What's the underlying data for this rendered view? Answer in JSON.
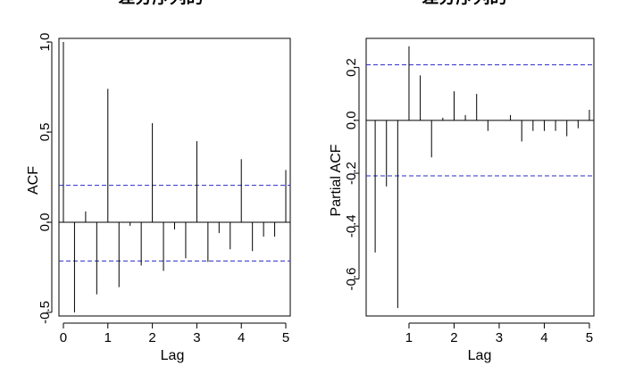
{
  "chart_data": [
    {
      "type": "bar",
      "title": "差分序列的",
      "xlabel": "Lag",
      "ylabel": "ACF",
      "xlim": [
        -0.1,
        5.1
      ],
      "ylim": [
        -0.52,
        1.02
      ],
      "xticks": [
        0,
        1,
        2,
        3,
        4,
        5
      ],
      "xtick_labels": [
        "0",
        "1",
        "2",
        "3",
        "4",
        "5"
      ],
      "yticks": [
        -0.5,
        0.0,
        0.5,
        1.0
      ],
      "ytick_labels": [
        "-0.5",
        "0.0",
        "0.5",
        "1.0"
      ],
      "confidence_band": [
        0.205,
        -0.215
      ],
      "confidence_color": "#2b2bc8",
      "x": [
        0,
        0.25,
        0.5,
        0.75,
        1.0,
        1.25,
        1.5,
        1.75,
        2.0,
        2.25,
        2.5,
        2.75,
        3.0,
        3.25,
        3.5,
        3.75,
        4.0,
        4.25,
        4.5,
        4.75,
        5.0
      ],
      "values": [
        1.0,
        -0.5,
        0.06,
        -0.4,
        0.74,
        -0.36,
        -0.02,
        -0.24,
        0.55,
        -0.27,
        -0.04,
        -0.2,
        0.45,
        -0.22,
        -0.06,
        -0.15,
        0.35,
        -0.16,
        -0.08,
        -0.08,
        0.29
      ],
      "grid": false
    },
    {
      "type": "bar",
      "title": "差分序列的",
      "xlabel": "Lag",
      "ylabel": "Partial ACF",
      "xlim": [
        0.05,
        5.1
      ],
      "ylim": [
        -0.74,
        0.31
      ],
      "xticks": [
        1,
        2,
        3,
        4,
        5
      ],
      "xtick_labels": [
        "1",
        "2",
        "3",
        "4",
        "5"
      ],
      "yticks": [
        -0.6,
        -0.4,
        -0.2,
        0.0,
        0.2
      ],
      "ytick_labels": [
        "-0.6",
        "-0.4",
        "-0.2",
        "0.0",
        "0.2"
      ],
      "confidence_band": [
        0.21,
        -0.21
      ],
      "confidence_color": "#2b2bc8",
      "x": [
        0.25,
        0.5,
        0.75,
        1.0,
        1.25,
        1.5,
        1.75,
        2.0,
        2.25,
        2.5,
        2.75,
        3.0,
        3.25,
        3.5,
        3.75,
        4.0,
        4.25,
        4.5,
        4.75,
        5.0
      ],
      "values": [
        -0.5,
        -0.25,
        -0.71,
        0.28,
        0.17,
        -0.14,
        0.01,
        0.11,
        0.02,
        0.1,
        -0.04,
        0.0,
        0.02,
        -0.08,
        -0.04,
        -0.04,
        -0.04,
        -0.06,
        -0.03,
        0.04
      ],
      "grid": false
    }
  ]
}
